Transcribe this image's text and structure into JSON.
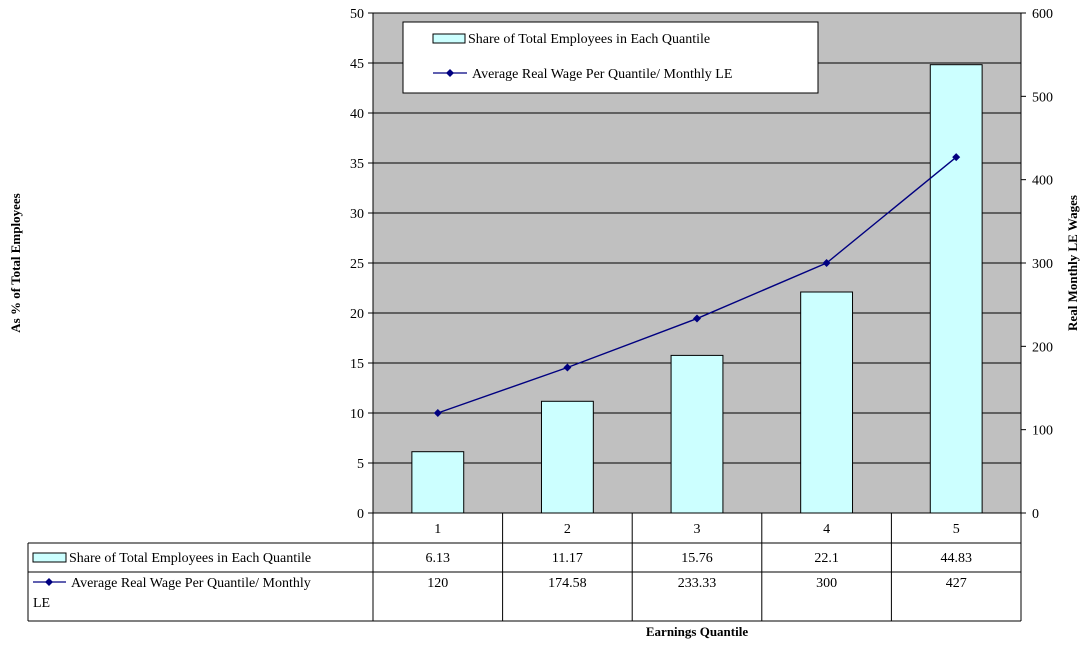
{
  "chart_data": {
    "type": "bar",
    "categories": [
      "1",
      "2",
      "3",
      "4",
      "5"
    ],
    "series": [
      {
        "name": "Share of Total Employees in Each Quantile",
        "type": "bar",
        "axis": "left",
        "color": "#ccffff",
        "values": [
          6.13,
          11.17,
          15.76,
          22.1,
          44.83
        ],
        "labels": [
          "6.13",
          "11.17",
          "15.76",
          "22.1",
          "44.83"
        ]
      },
      {
        "name": "Average Real Wage Per Quantile/ Monthly LE",
        "type": "line",
        "axis": "right",
        "color": "#000080",
        "values": [
          120,
          174.58,
          233.33,
          300,
          427
        ],
        "labels": [
          "120",
          "174.58",
          "233.33",
          "300",
          "427"
        ]
      }
    ],
    "xlabel": "Earnings Quantile",
    "ylabel": "As % of Total Employees",
    "y2label": "Real Monthly LE Wages",
    "ylim": [
      0,
      50
    ],
    "yticks": [
      "0",
      "5",
      "10",
      "15",
      "20",
      "25",
      "30",
      "35",
      "40",
      "45",
      "50"
    ],
    "y2lim": [
      0,
      600
    ],
    "y2ticks": [
      "0",
      "100",
      "200",
      "300",
      "400",
      "500",
      "600"
    ],
    "plot_background": "#c0c0c0",
    "grid": true,
    "legend_position": "top-center",
    "data_table": true,
    "table_series_names": [
      "Share of Total Employees in Each Quantile",
      "Average Real Wage Per Quantile/ Monthly LE"
    ]
  }
}
